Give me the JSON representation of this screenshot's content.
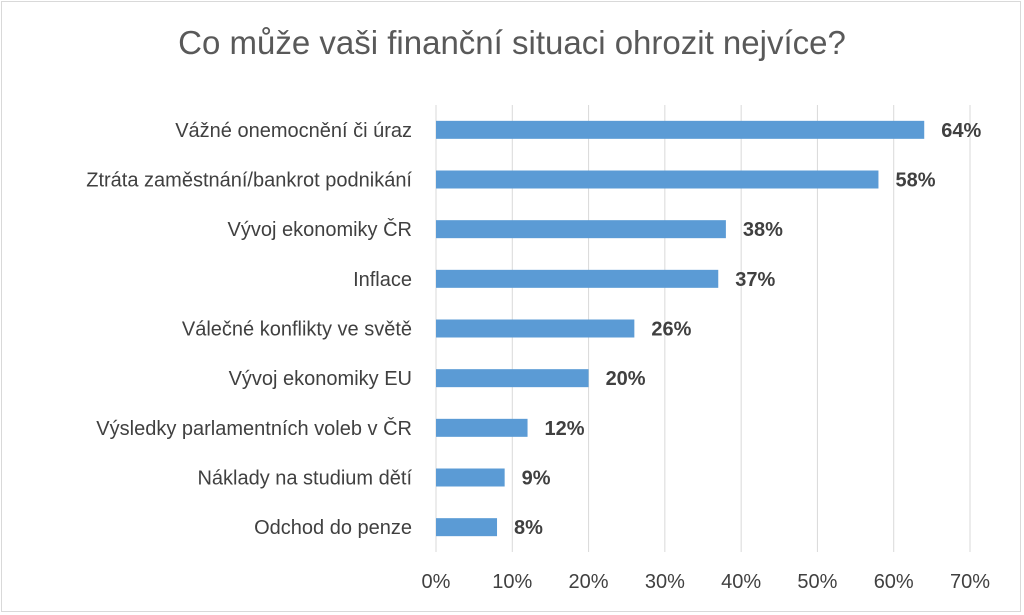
{
  "chart_data": {
    "type": "bar",
    "orientation": "horizontal",
    "title": "Co může vaši finanční situaci ohrozit nejvíce?",
    "categories": [
      "Vážné onemocnění či úraz",
      "Ztráta zaměstnání/bankrot podnikání",
      "Vývoj ekonomiky ČR",
      "Inflace",
      "Válečné konflikty ve světě",
      "Vývoj ekonomiky EU",
      "Výsledky parlamentních voleb v ČR",
      "Náklady na studium dětí",
      "Odchod do penze"
    ],
    "values": [
      64,
      58,
      38,
      37,
      26,
      20,
      12,
      9,
      8
    ],
    "value_labels": [
      "64%",
      "58%",
      "38%",
      "37%",
      "26%",
      "20%",
      "12%",
      "9%",
      "8%"
    ],
    "xlim": [
      0,
      70
    ],
    "x_ticks": [
      0,
      10,
      20,
      30,
      40,
      50,
      60,
      70
    ],
    "x_tick_labels": [
      "0%",
      "10%",
      "20%",
      "30%",
      "40%",
      "50%",
      "60%",
      "70%"
    ],
    "grid": "vertical",
    "legend": "none",
    "bar_color": "#5b9bd5",
    "grid_color": "#d9d9d9"
  }
}
